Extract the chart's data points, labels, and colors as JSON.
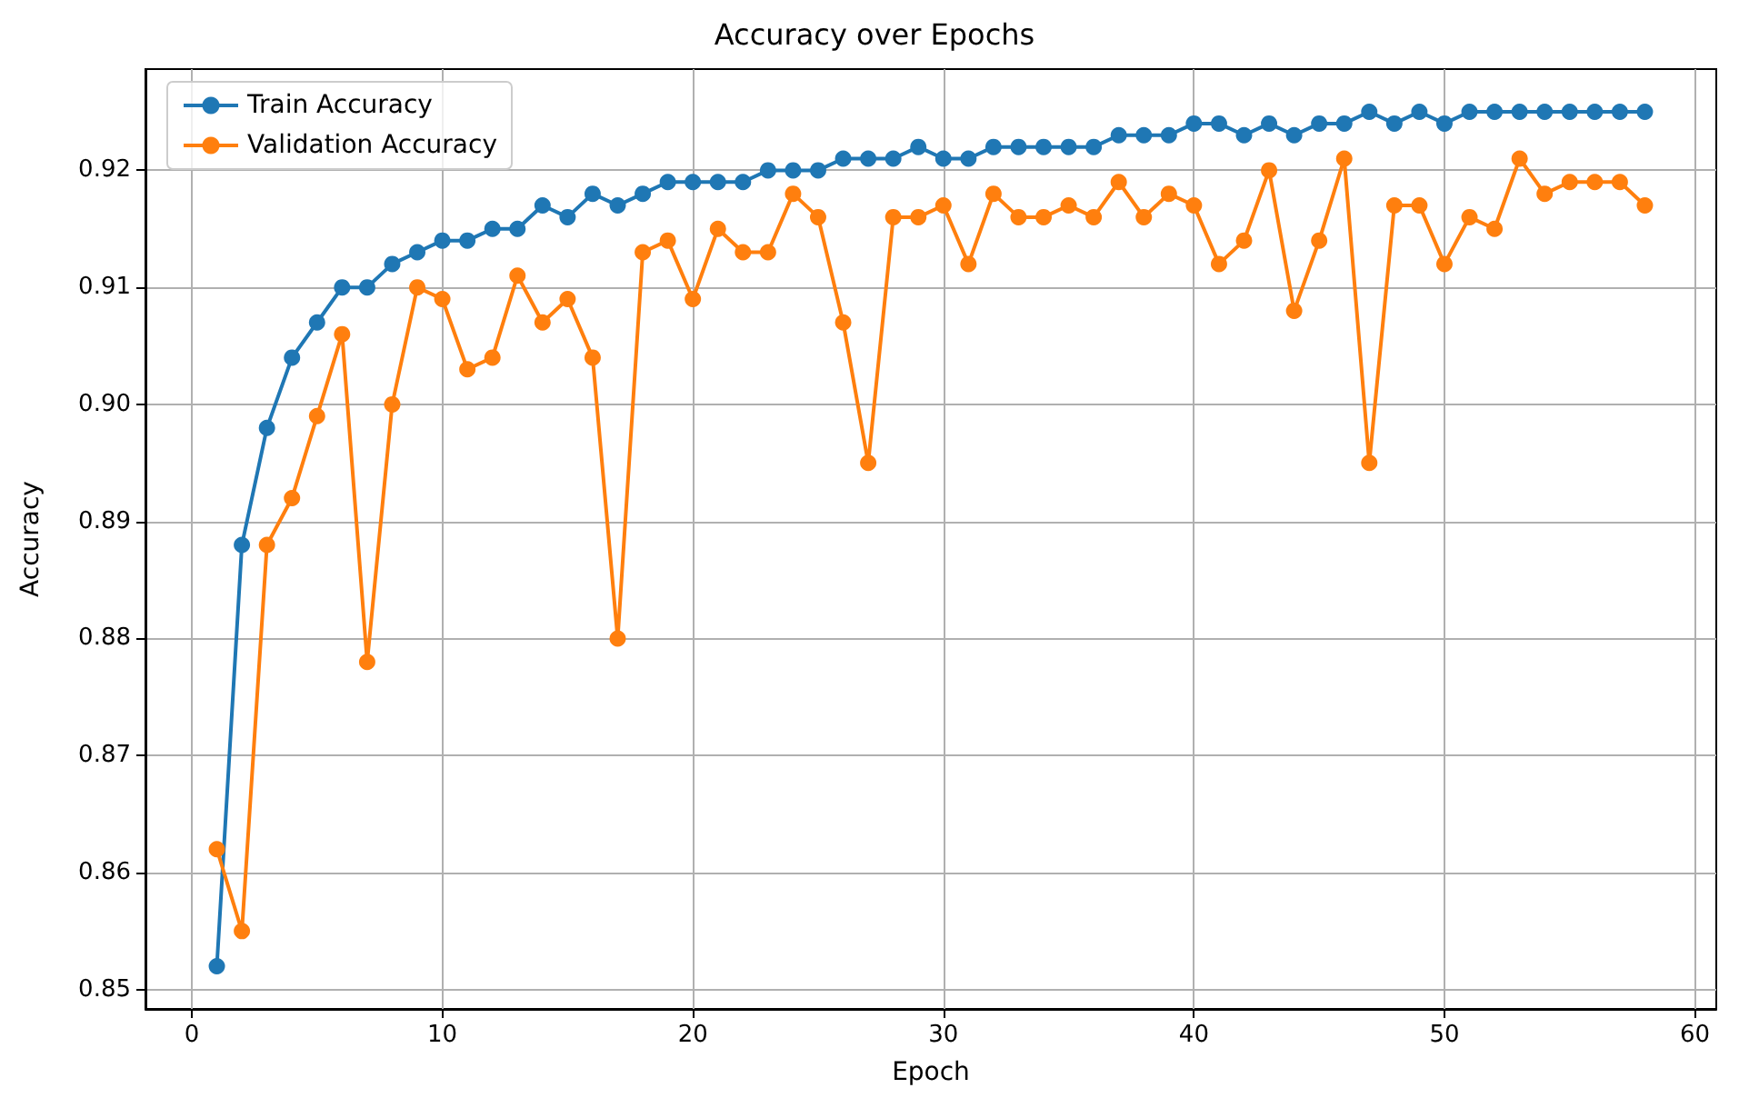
{
  "chart_data": {
    "type": "line",
    "title": "Accuracy over Epochs",
    "xlabel": "Epoch",
    "ylabel": "Accuracy",
    "x": [
      1,
      2,
      3,
      4,
      5,
      6,
      7,
      8,
      9,
      10,
      11,
      12,
      13,
      14,
      15,
      16,
      17,
      18,
      19,
      20,
      21,
      22,
      23,
      24,
      25,
      26,
      27,
      28,
      29,
      30,
      31,
      32,
      33,
      34,
      35,
      36,
      37,
      38,
      39,
      40,
      41,
      42,
      43,
      44,
      45,
      46,
      47,
      48,
      49,
      50,
      51,
      52,
      53,
      54,
      55,
      56,
      57,
      58
    ],
    "series": [
      {
        "name": "Train Accuracy",
        "color": "#1f77b4",
        "values": [
          0.852,
          0.888,
          0.898,
          0.904,
          0.907,
          0.91,
          0.91,
          0.912,
          0.913,
          0.914,
          0.914,
          0.915,
          0.915,
          0.917,
          0.916,
          0.918,
          0.917,
          0.918,
          0.919,
          0.919,
          0.919,
          0.919,
          0.92,
          0.92,
          0.92,
          0.921,
          0.921,
          0.921,
          0.922,
          0.921,
          0.921,
          0.922,
          0.922,
          0.922,
          0.922,
          0.922,
          0.923,
          0.923,
          0.923,
          0.924,
          0.924,
          0.923,
          0.924,
          0.923,
          0.924,
          0.924,
          0.925,
          0.924,
          0.925,
          0.924,
          0.925,
          0.925,
          0.925,
          0.925,
          0.925,
          0.925,
          0.925,
          0.925
        ]
      },
      {
        "name": "Validation Accuracy",
        "color": "#ff7f0e",
        "values": [
          0.862,
          0.855,
          0.888,
          0.892,
          0.899,
          0.906,
          0.878,
          0.9,
          0.91,
          0.909,
          0.903,
          0.904,
          0.911,
          0.907,
          0.909,
          0.904,
          0.88,
          0.913,
          0.914,
          0.909,
          0.915,
          0.913,
          0.913,
          0.918,
          0.916,
          0.907,
          0.895,
          0.916,
          0.916,
          0.917,
          0.912,
          0.918,
          0.916,
          0.916,
          0.917,
          0.916,
          0.919,
          0.916,
          0.918,
          0.917,
          0.912,
          0.914,
          0.92,
          0.908,
          0.914,
          0.921,
          0.895,
          0.917,
          0.917,
          0.912,
          0.916,
          0.915,
          0.921,
          0.918,
          0.919,
          0.919,
          0.919,
          0.917
        ]
      }
    ],
    "xlim": [
      -1.85,
      60.85
    ],
    "xticks": [
      0,
      10,
      20,
      30,
      40,
      50,
      60
    ],
    "ylim": [
      0.84835,
      0.92865
    ],
    "yticks": [
      0.85,
      0.86,
      0.87,
      0.88,
      0.89,
      {
        "value": 0.9,
        "label": "0.90"
      },
      0.91,
      0.92
    ],
    "grid": true,
    "legend": "top left",
    "marker": "circle",
    "line_style": "solid"
  }
}
